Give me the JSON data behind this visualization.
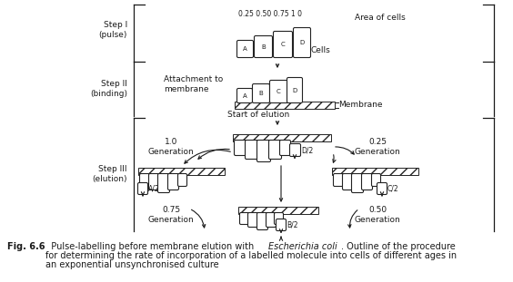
{
  "bg_color": "#ffffff",
  "text_color": "#1a1a1a",
  "step1_label": "Step I\n(pulse)",
  "step2_label": "Step II\n(binding)",
  "step3_label": "Step III\n(elution)",
  "area_label": "Area of cells",
  "cells_label": "Cells",
  "attachment_label": "Attachment to\nmembrane",
  "membrane_label": "Membrane",
  "start_elution_label": "Start of elution",
  "cell_labels_top": [
    "A",
    "B",
    "C",
    "D"
  ],
  "size_labels": "0.25 0.50 0.75 1 0",
  "gen_1_0": "1.0\nGeneration",
  "gen_0_25": "0.25\nGeneration",
  "gen_0_75": "0.75\nGeneration",
  "gen_0_50": "0.50\nGeneration",
  "label_D2": "D/2",
  "label_A2": "A/2",
  "label_C2": "C/2",
  "label_B2": "B/2",
  "caption_fig": "Fig. 6.6",
  "caption_main": "  Pulse-labelling before membrane elution with ",
  "caption_italic": "Escherichia coli",
  "caption_end": ". Outline of the procedure",
  "caption_line2": "for determining the rate of incorporation of a labelled molecule into cells of different ages in",
  "caption_line3": "an exponential unsynchronised culture"
}
